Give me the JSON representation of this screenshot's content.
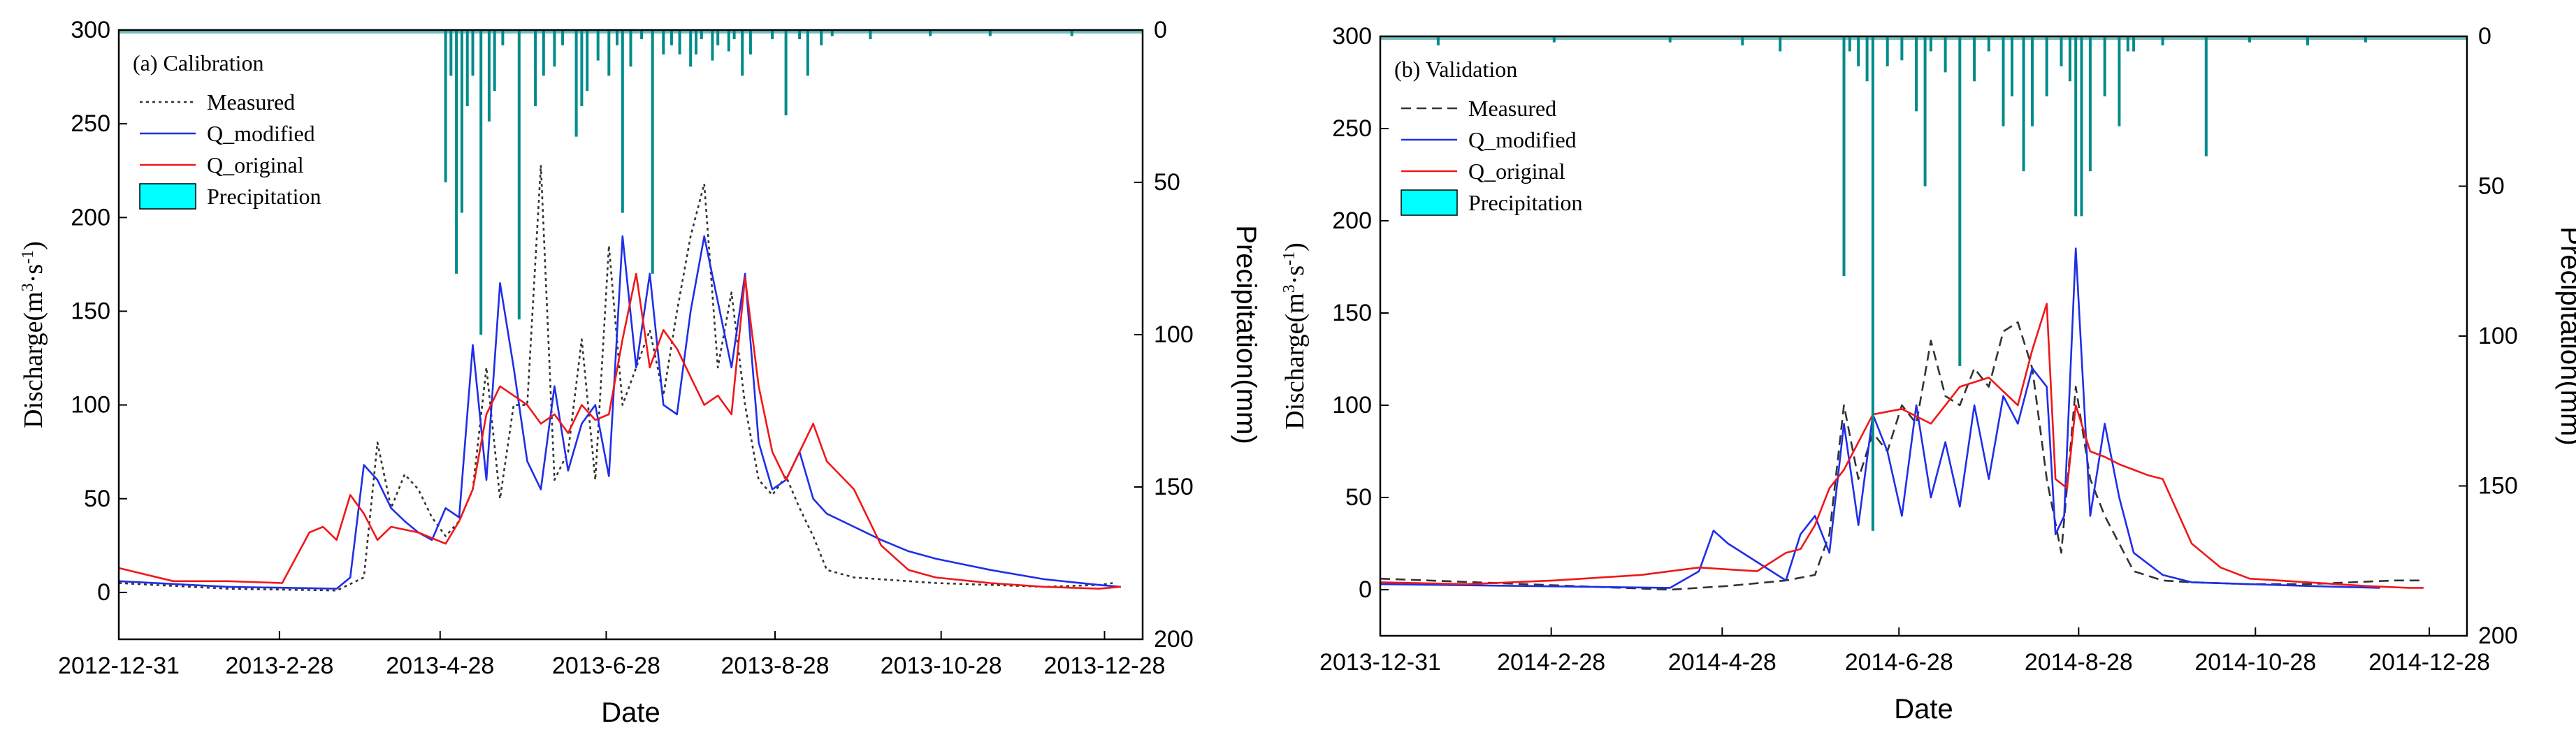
{
  "chart_data": [
    {
      "type": "line",
      "panel_label": "(a) Calibration",
      "xlabel": "Date",
      "ylabel_left": "Discharge(m3·s-1)",
      "ylabel_left_parts": [
        "Discharge(m",
        "3",
        "·s",
        "-1",
        ")"
      ],
      "ylabel_right": "Precipitation(mm)",
      "ylim_left": [
        -25,
        300
      ],
      "ylim_right": [
        200,
        0
      ],
      "yticks_left": [
        0,
        50,
        100,
        150,
        200,
        250,
        300
      ],
      "yticks_right": [
        0,
        50,
        100,
        150,
        200
      ],
      "x_range_days": [
        0,
        376
      ],
      "xtick_labels": [
        "2012-12-31",
        "2013-2-28",
        "2013-4-28",
        "2013-6-28",
        "2013-8-28",
        "2013-10-28",
        "2013-12-28"
      ],
      "xtick_days": [
        0,
        59,
        118,
        179,
        241,
        302,
        362
      ],
      "legend": [
        "Measured",
        "Q_modified",
        "Q_original",
        "Precipitation"
      ],
      "series": [
        {
          "name": "Measured",
          "style": "dotted",
          "color": "#333333",
          "days": [
            0,
            40,
            80,
            90,
            95,
            100,
            105,
            110,
            115,
            120,
            125,
            130,
            135,
            140,
            145,
            150,
            155,
            160,
            165,
            170,
            175,
            180,
            185,
            190,
            195,
            200,
            205,
            210,
            215,
            220,
            225,
            230,
            235,
            240,
            245,
            250,
            255,
            260,
            270,
            280,
            290,
            300,
            320,
            340,
            360,
            365
          ],
          "values": [
            5,
            2,
            1,
            8,
            80,
            45,
            63,
            55,
            40,
            30,
            38,
            55,
            120,
            50,
            100,
            100,
            228,
            60,
            75,
            135,
            60,
            185,
            100,
            120,
            140,
            105,
            150,
            190,
            218,
            120,
            160,
            100,
            60,
            52,
            62,
            45,
            30,
            12,
            8,
            7,
            6,
            5,
            4,
            3,
            4,
            5
          ]
        },
        {
          "name": "Q_modified",
          "style": "solid",
          "color": "#1f2ee8",
          "days": [
            0,
            40,
            80,
            85,
            90,
            95,
            100,
            105,
            110,
            115,
            120,
            125,
            130,
            135,
            140,
            145,
            150,
            155,
            160,
            165,
            170,
            175,
            180,
            185,
            190,
            195,
            200,
            205,
            210,
            215,
            220,
            225,
            230,
            235,
            240,
            245,
            250,
            255,
            260,
            270,
            280,
            290,
            300,
            320,
            340,
            360,
            368
          ],
          "values": [
            6,
            3,
            2,
            8,
            68,
            60,
            45,
            38,
            32,
            28,
            45,
            40,
            132,
            60,
            165,
            120,
            70,
            55,
            110,
            65,
            90,
            100,
            62,
            190,
            120,
            170,
            100,
            95,
            150,
            190,
            155,
            120,
            170,
            80,
            55,
            60,
            75,
            50,
            42,
            35,
            28,
            22,
            18,
            12,
            7,
            4,
            3
          ]
        },
        {
          "name": "Q_original",
          "style": "solid",
          "color": "#f01818",
          "days": [
            0,
            20,
            40,
            60,
            70,
            75,
            80,
            85,
            90,
            95,
            100,
            110,
            120,
            125,
            130,
            135,
            140,
            145,
            150,
            155,
            160,
            165,
            170,
            175,
            180,
            185,
            190,
            195,
            200,
            205,
            210,
            215,
            220,
            225,
            230,
            235,
            240,
            245,
            250,
            255,
            260,
            270,
            280,
            290,
            300,
            320,
            340,
            360,
            368
          ],
          "values": [
            13,
            6,
            6,
            5,
            32,
            35,
            28,
            52,
            42,
            28,
            35,
            32,
            26,
            38,
            55,
            95,
            110,
            105,
            100,
            90,
            95,
            85,
            100,
            92,
            95,
            135,
            170,
            120,
            140,
            130,
            115,
            100,
            105,
            95,
            168,
            110,
            75,
            60,
            75,
            90,
            70,
            55,
            25,
            12,
            8,
            5,
            3,
            2,
            3
          ]
        },
        {
          "name": "Precipitation",
          "style": "bars",
          "color": "#008b8b",
          "legend_color": "#00ffff",
          "days": [
            120,
            122,
            124,
            126,
            128,
            130,
            133,
            136,
            138,
            141,
            147,
            153,
            156,
            160,
            163,
            168,
            170,
            172,
            176,
            180,
            183,
            185,
            188,
            192,
            196,
            200,
            203,
            206,
            210,
            212,
            214,
            218,
            220,
            224,
            226,
            229,
            232,
            240,
            245,
            250,
            253,
            258,
            262,
            276,
            298,
            320,
            350
          ],
          "values": [
            50,
            15,
            80,
            60,
            25,
            15,
            100,
            30,
            20,
            5,
            95,
            25,
            15,
            12,
            5,
            35,
            25,
            20,
            10,
            15,
            5,
            60,
            12,
            3,
            80,
            8,
            5,
            8,
            12,
            8,
            3,
            10,
            5,
            7,
            3,
            15,
            8,
            3,
            28,
            3,
            15,
            5,
            2,
            3,
            2,
            2,
            2
          ]
        }
      ]
    },
    {
      "type": "line",
      "panel_label": "(b) Validation",
      "xlabel": "Date",
      "ylabel_left": "Discharge(m3·s-1)",
      "ylabel_left_parts": [
        "Discharge(m",
        "3",
        "·s",
        "-1",
        ")"
      ],
      "ylabel_right": "Precipitation(mm)",
      "ylim_left": [
        -25,
        300
      ],
      "ylim_right": [
        200,
        0
      ],
      "yticks_left": [
        0,
        50,
        100,
        150,
        200,
        250,
        300
      ],
      "yticks_right": [
        0,
        50,
        100,
        150,
        200
      ],
      "x_range_days": [
        0,
        375
      ],
      "xtick_labels": [
        "2013-12-31",
        "2014-2-28",
        "2014-4-28",
        "2014-6-28",
        "2014-8-28",
        "2014-10-28",
        "2014-12-28"
      ],
      "xtick_days": [
        0,
        59,
        118,
        179,
        241,
        302,
        362
      ],
      "legend": [
        "Measured",
        "Q_modified",
        "Q_original",
        "Precipitation"
      ],
      "series": [
        {
          "name": "Measured",
          "style": "dashed",
          "color": "#333333",
          "days": [
            0,
            50,
            100,
            120,
            140,
            150,
            155,
            160,
            165,
            170,
            175,
            180,
            185,
            190,
            195,
            200,
            205,
            210,
            215,
            220,
            225,
            230,
            235,
            240,
            245,
            250,
            255,
            260,
            270,
            280,
            300,
            320,
            350,
            360
          ],
          "values": [
            6,
            3,
            0,
            2,
            5,
            8,
            30,
            100,
            60,
            85,
            75,
            100,
            90,
            135,
            105,
            100,
            120,
            110,
            140,
            145,
            120,
            60,
            20,
            110,
            60,
            40,
            25,
            10,
            5,
            4,
            3,
            3,
            5,
            5
          ]
        },
        {
          "name": "Q_modified",
          "style": "solid",
          "color": "#1f2ee8",
          "days": [
            0,
            50,
            100,
            110,
            115,
            120,
            130,
            140,
            145,
            150,
            155,
            160,
            165,
            170,
            175,
            180,
            185,
            190,
            195,
            200,
            205,
            210,
            215,
            220,
            225,
            230,
            233,
            236,
            240,
            245,
            250,
            255,
            260,
            270,
            280,
            300,
            320,
            345
          ],
          "values": [
            3,
            2,
            1,
            10,
            32,
            25,
            15,
            5,
            30,
            40,
            20,
            90,
            35,
            95,
            75,
            40,
            100,
            50,
            80,
            45,
            100,
            60,
            105,
            90,
            120,
            110,
            30,
            40,
            185,
            40,
            90,
            50,
            20,
            8,
            4,
            3,
            2,
            1
          ]
        },
        {
          "name": "Q_original",
          "style": "solid",
          "color": "#f01818",
          "days": [
            0,
            30,
            60,
            90,
            110,
            130,
            140,
            145,
            150,
            155,
            160,
            165,
            170,
            180,
            190,
            200,
            210,
            220,
            225,
            230,
            233,
            237,
            240,
            245,
            250,
            255,
            260,
            265,
            270,
            280,
            290,
            300,
            320,
            340,
            355,
            360
          ],
          "values": [
            4,
            3,
            5,
            8,
            12,
            10,
            20,
            22,
            35,
            55,
            65,
            80,
            95,
            98,
            90,
            110,
            115,
            100,
            130,
            155,
            60,
            55,
            100,
            75,
            72,
            68,
            65,
            62,
            60,
            25,
            12,
            6,
            4,
            2,
            1,
            1
          ]
        },
        {
          "name": "Precipitation",
          "style": "bars",
          "color": "#008b8b",
          "legend_color": "#00ffff",
          "days": [
            20,
            60,
            100,
            125,
            138,
            160,
            162,
            165,
            168,
            170,
            175,
            180,
            185,
            188,
            190,
            195,
            200,
            205,
            210,
            215,
            218,
            222,
            225,
            230,
            235,
            238,
            240,
            242,
            245,
            250,
            255,
            258,
            260,
            270,
            285,
            300,
            320,
            340
          ],
          "values": [
            3,
            2,
            2,
            3,
            5,
            80,
            5,
            10,
            15,
            165,
            10,
            8,
            25,
            50,
            5,
            12,
            110,
            15,
            5,
            30,
            20,
            45,
            30,
            20,
            10,
            15,
            60,
            60,
            45,
            20,
            30,
            5,
            5,
            3,
            40,
            2,
            3,
            2
          ]
        }
      ]
    }
  ]
}
